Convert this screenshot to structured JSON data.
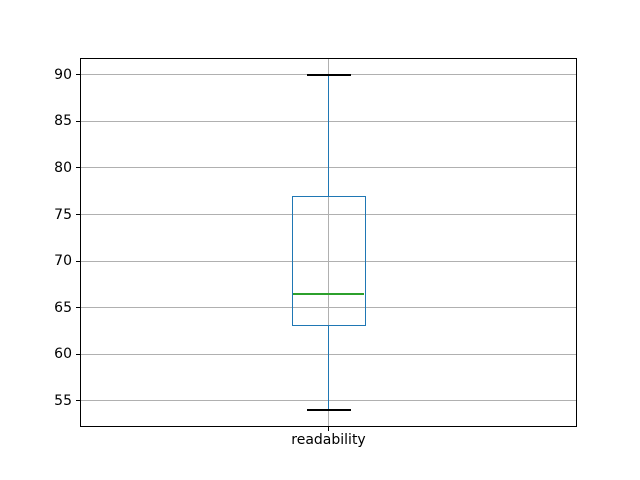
{
  "chart_data": {
    "type": "boxplot",
    "title": "",
    "categories": [
      "readability"
    ],
    "series": [
      {
        "name": "readability",
        "whisker_low": 54,
        "q1": 63,
        "median": 66.5,
        "q3": 77,
        "whisker_high": 90,
        "fliers": []
      }
    ],
    "ylim": [
      52.2,
      91.8
    ],
    "yticks": [
      55,
      60,
      65,
      70,
      75,
      80,
      85,
      90
    ],
    "xticklabels": [
      "readability"
    ],
    "grid": true,
    "legend": false,
    "colors": {
      "box": "#1f77b4",
      "whisker": "#1f77b4",
      "median": "#2ca02c",
      "cap": "#000000",
      "grid": "#b0b0b0",
      "spine": "#000000",
      "background": "#ffffff",
      "text": "#000000"
    }
  }
}
